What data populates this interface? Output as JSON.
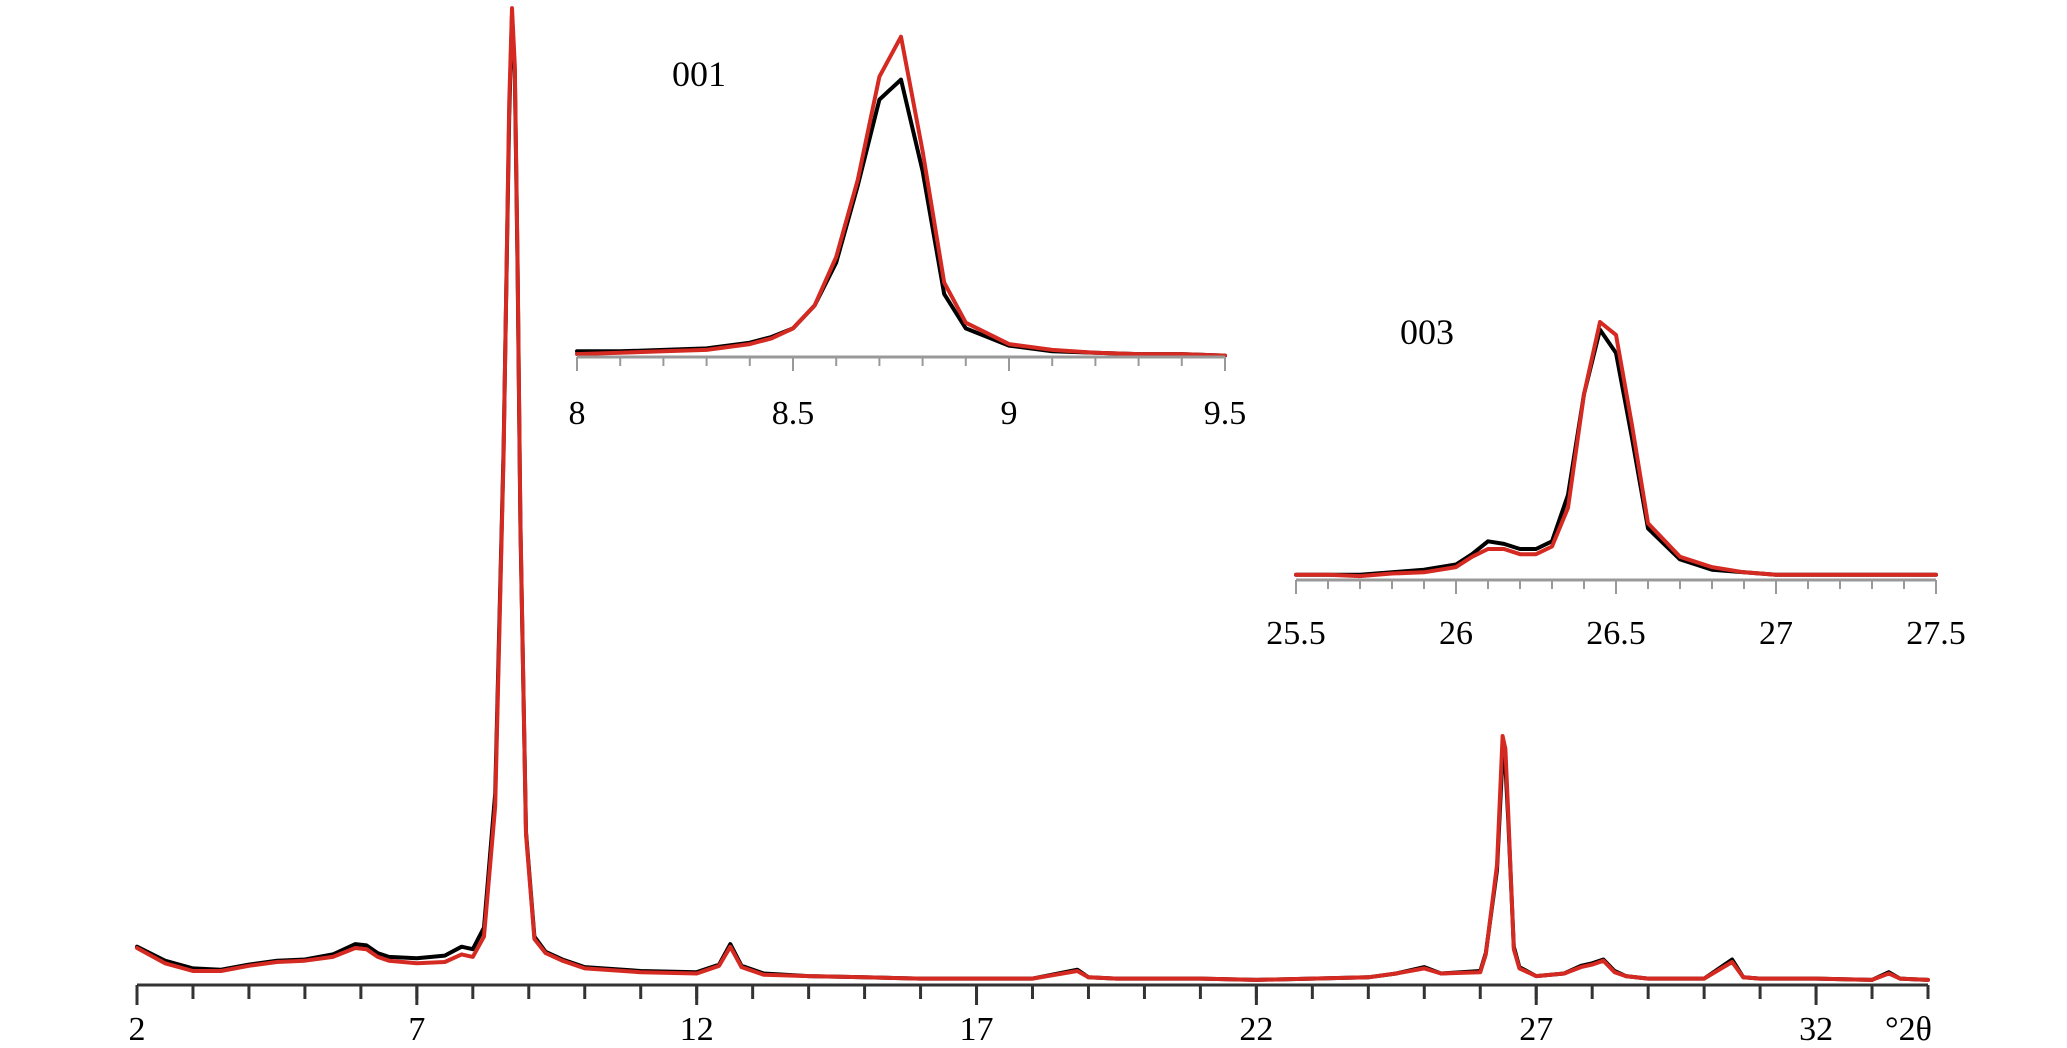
{
  "chart_data": [
    {
      "type": "line",
      "xlabel": "°2θ",
      "ylabel": "",
      "xlim": [
        2,
        34
      ],
      "x_ticks": [
        "2",
        "7",
        "12",
        "17",
        "22",
        "27",
        "32"
      ],
      "grid": false,
      "colors": {
        "series_a": "#000000",
        "series_b": "#d42a22"
      },
      "series": [
        {
          "x": [
            2,
            2.5,
            3,
            3.5,
            4,
            4.5,
            5,
            5.5,
            5.9,
            6.1,
            6.3,
            6.5,
            7,
            7.5,
            7.8,
            8,
            8.2,
            8.4,
            8.55,
            8.65,
            8.7,
            8.75,
            8.8,
            8.85,
            8.95,
            9.1,
            9.3,
            9.6,
            10,
            11,
            12,
            12.4,
            12.6,
            12.8,
            13.2,
            14,
            15,
            16,
            17,
            18,
            18.8,
            19,
            19.5,
            20,
            21,
            22,
            23,
            24,
            24.5,
            25,
            25.3,
            26,
            26.1,
            26.3,
            26.4,
            26.45,
            26.5,
            26.6,
            26.7,
            27,
            27.5,
            27.8,
            28,
            28.2,
            28.4,
            28.6,
            29,
            30,
            30.5,
            30.7,
            31,
            32,
            33,
            33.3,
            33.5,
            34
          ],
          "y": [
            30,
            19,
            13,
            12,
            16,
            19,
            20,
            24,
            32,
            31,
            25,
            22,
            21,
            23,
            30,
            28,
            45,
            150,
            420,
            680,
            760,
            715,
            560,
            360,
            120,
            38,
            26,
            20,
            14,
            11,
            10,
            16,
            32,
            15,
            9,
            7,
            6,
            5,
            5,
            5,
            12,
            6,
            5,
            5,
            5,
            4,
            5,
            6,
            9,
            14,
            9,
            11,
            25,
            90,
            180,
            172,
            130,
            30,
            14,
            7,
            9,
            15,
            17,
            20,
            11,
            7,
            5,
            5,
            20,
            6,
            5,
            5,
            4,
            10,
            5,
            4
          ]
        },
        {
          "x": [
            2,
            2.5,
            3,
            3.5,
            4,
            4.5,
            5,
            5.5,
            5.9,
            6.1,
            6.3,
            6.5,
            7,
            7.5,
            7.8,
            8,
            8.2,
            8.4,
            8.55,
            8.65,
            8.7,
            8.75,
            8.8,
            8.85,
            8.95,
            9.1,
            9.3,
            9.6,
            10,
            11,
            12,
            12.4,
            12.6,
            12.8,
            13.2,
            14,
            15,
            16,
            17,
            18,
            18.8,
            19,
            19.5,
            20,
            21,
            22,
            23,
            24,
            24.5,
            25,
            25.3,
            26,
            26.1,
            26.3,
            26.4,
            26.45,
            26.5,
            26.6,
            26.7,
            27,
            27.5,
            27.8,
            28,
            28.2,
            28.4,
            28.6,
            29,
            30,
            30.5,
            30.7,
            31,
            32,
            33,
            33.3,
            33.5,
            34
          ],
          "y": [
            29,
            17,
            11,
            11,
            15,
            18,
            19,
            22,
            29,
            28,
            22,
            19,
            17,
            18,
            24,
            22,
            38,
            140,
            415,
            690,
            765,
            720,
            565,
            365,
            118,
            36,
            25,
            19,
            13,
            10,
            9,
            15,
            30,
            14,
            8,
            7,
            6,
            5,
            5,
            5,
            11,
            6,
            5,
            5,
            5,
            4,
            5,
            6,
            9,
            13,
            9,
            10,
            24,
            94,
            195,
            185,
            135,
            28,
            13,
            7,
            9,
            14,
            16,
            19,
            10,
            7,
            5,
            5,
            18,
            6,
            5,
            5,
            4,
            9,
            5,
            4
          ]
        }
      ]
    },
    {
      "type": "line",
      "title": "001",
      "xlim": [
        8,
        9.5
      ],
      "x_ticks": [
        "8",
        "8.5",
        "9",
        "9.5"
      ],
      "series": [
        {
          "x": [
            8,
            8.1,
            8.2,
            8.3,
            8.4,
            8.45,
            8.5,
            8.55,
            8.6,
            8.65,
            8.7,
            8.75,
            8.8,
            8.85,
            8.9,
            9,
            9.1,
            9.2,
            9.3,
            9.4,
            9.5
          ],
          "y": [
            0.02,
            0.02,
            0.025,
            0.03,
            0.05,
            0.07,
            0.1,
            0.18,
            0.33,
            0.6,
            0.9,
            0.97,
            0.65,
            0.22,
            0.1,
            0.04,
            0.02,
            0.015,
            0.01,
            0.01,
            0.005
          ]
        },
        {
          "x": [
            8,
            8.1,
            8.2,
            8.3,
            8.4,
            8.45,
            8.5,
            8.55,
            8.6,
            8.65,
            8.7,
            8.75,
            8.8,
            8.85,
            8.9,
            9,
            9.1,
            9.2,
            9.3,
            9.4,
            9.5
          ],
          "y": [
            0.01,
            0.015,
            0.02,
            0.025,
            0.045,
            0.065,
            0.1,
            0.18,
            0.35,
            0.62,
            0.98,
            1.12,
            0.72,
            0.26,
            0.12,
            0.045,
            0.025,
            0.015,
            0.01,
            0.01,
            0.005
          ]
        }
      ]
    },
    {
      "type": "line",
      "title": "003",
      "xlim": [
        25.5,
        27.5
      ],
      "x_ticks": [
        "25.5",
        "26",
        "26.5",
        "27",
        "27.5"
      ],
      "series": [
        {
          "x": [
            25.5,
            25.6,
            25.7,
            25.8,
            25.9,
            26,
            26.05,
            26.1,
            26.15,
            26.2,
            26.25,
            26.3,
            26.35,
            26.4,
            26.45,
            26.5,
            26.55,
            26.6,
            26.7,
            26.8,
            26.9,
            27,
            27.1,
            27.2,
            27.3,
            27.4,
            27.5
          ],
          "y": [
            0.02,
            0.02,
            0.02,
            0.03,
            0.04,
            0.06,
            0.1,
            0.15,
            0.14,
            0.12,
            0.12,
            0.15,
            0.33,
            0.72,
            0.97,
            0.88,
            0.55,
            0.2,
            0.08,
            0.04,
            0.03,
            0.02,
            0.02,
            0.02,
            0.02,
            0.02,
            0.02
          ]
        },
        {
          "x": [
            25.5,
            25.6,
            25.7,
            25.8,
            25.9,
            26,
            26.05,
            26.1,
            26.15,
            26.2,
            26.25,
            26.3,
            26.35,
            26.4,
            26.45,
            26.5,
            26.55,
            26.6,
            26.7,
            26.8,
            26.9,
            27,
            27.1,
            27.2,
            27.3,
            27.4,
            27.5
          ],
          "y": [
            0.02,
            0.02,
            0.015,
            0.025,
            0.03,
            0.05,
            0.09,
            0.12,
            0.12,
            0.1,
            0.1,
            0.13,
            0.28,
            0.72,
            1.0,
            0.95,
            0.6,
            0.22,
            0.09,
            0.05,
            0.03,
            0.02,
            0.02,
            0.02,
            0.02,
            0.02,
            0.02
          ]
        }
      ]
    }
  ]
}
